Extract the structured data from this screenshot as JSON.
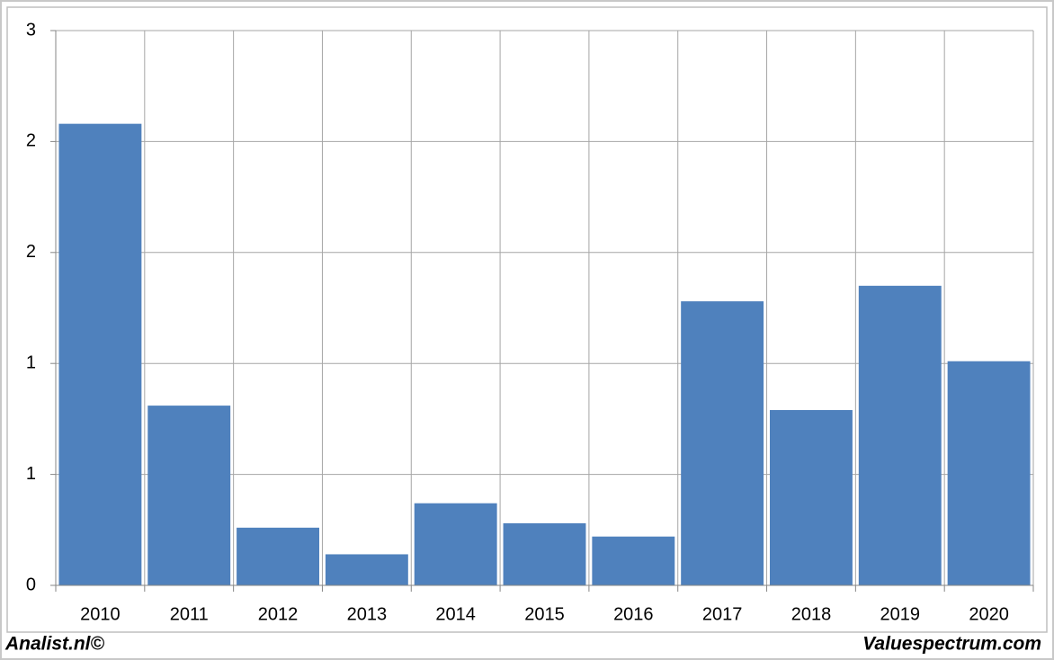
{
  "chart_data": {
    "type": "bar",
    "categories": [
      "2010",
      "2011",
      "2012",
      "2013",
      "2014",
      "2015",
      "2016",
      "2017",
      "2018",
      "2019",
      "2020"
    ],
    "values": [
      2.08,
      0.81,
      0.26,
      0.14,
      0.37,
      0.28,
      0.22,
      1.28,
      0.79,
      1.35,
      1.01
    ],
    "color": "#4f81bd",
    "ylim": [
      0,
      2.5
    ],
    "yticks": [
      0,
      {
        "value": 0.5,
        "label": "1"
      },
      1,
      {
        "value": 1.5,
        "label": "2"
      },
      2,
      {
        "value": 2.5,
        "label": "3"
      }
    ],
    "grid": true
  },
  "footer": {
    "left": "Analist.nl©",
    "right": "Valuespectrum.com"
  }
}
